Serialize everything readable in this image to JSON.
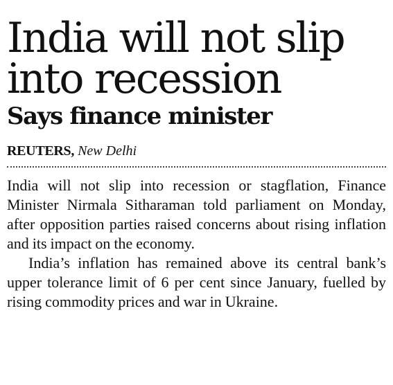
{
  "article": {
    "headline": "India will not slip into recession",
    "subheadline": "Says finance minister",
    "byline": {
      "agency": "REUTERS,",
      "dateline": "New Delhi"
    },
    "paragraphs": [
      "India will not slip into recession or stagflation, Finance Minister Nirmala Sitharaman told parliament on Monday, after opposition parties raised concerns about rising inflation and its impact on the economy.",
      "India’s inflation has remained above its central bank’s upper tolerance limit of 6 per cent since January, fuelled by rising commodity prices and war in Ukraine."
    ]
  }
}
